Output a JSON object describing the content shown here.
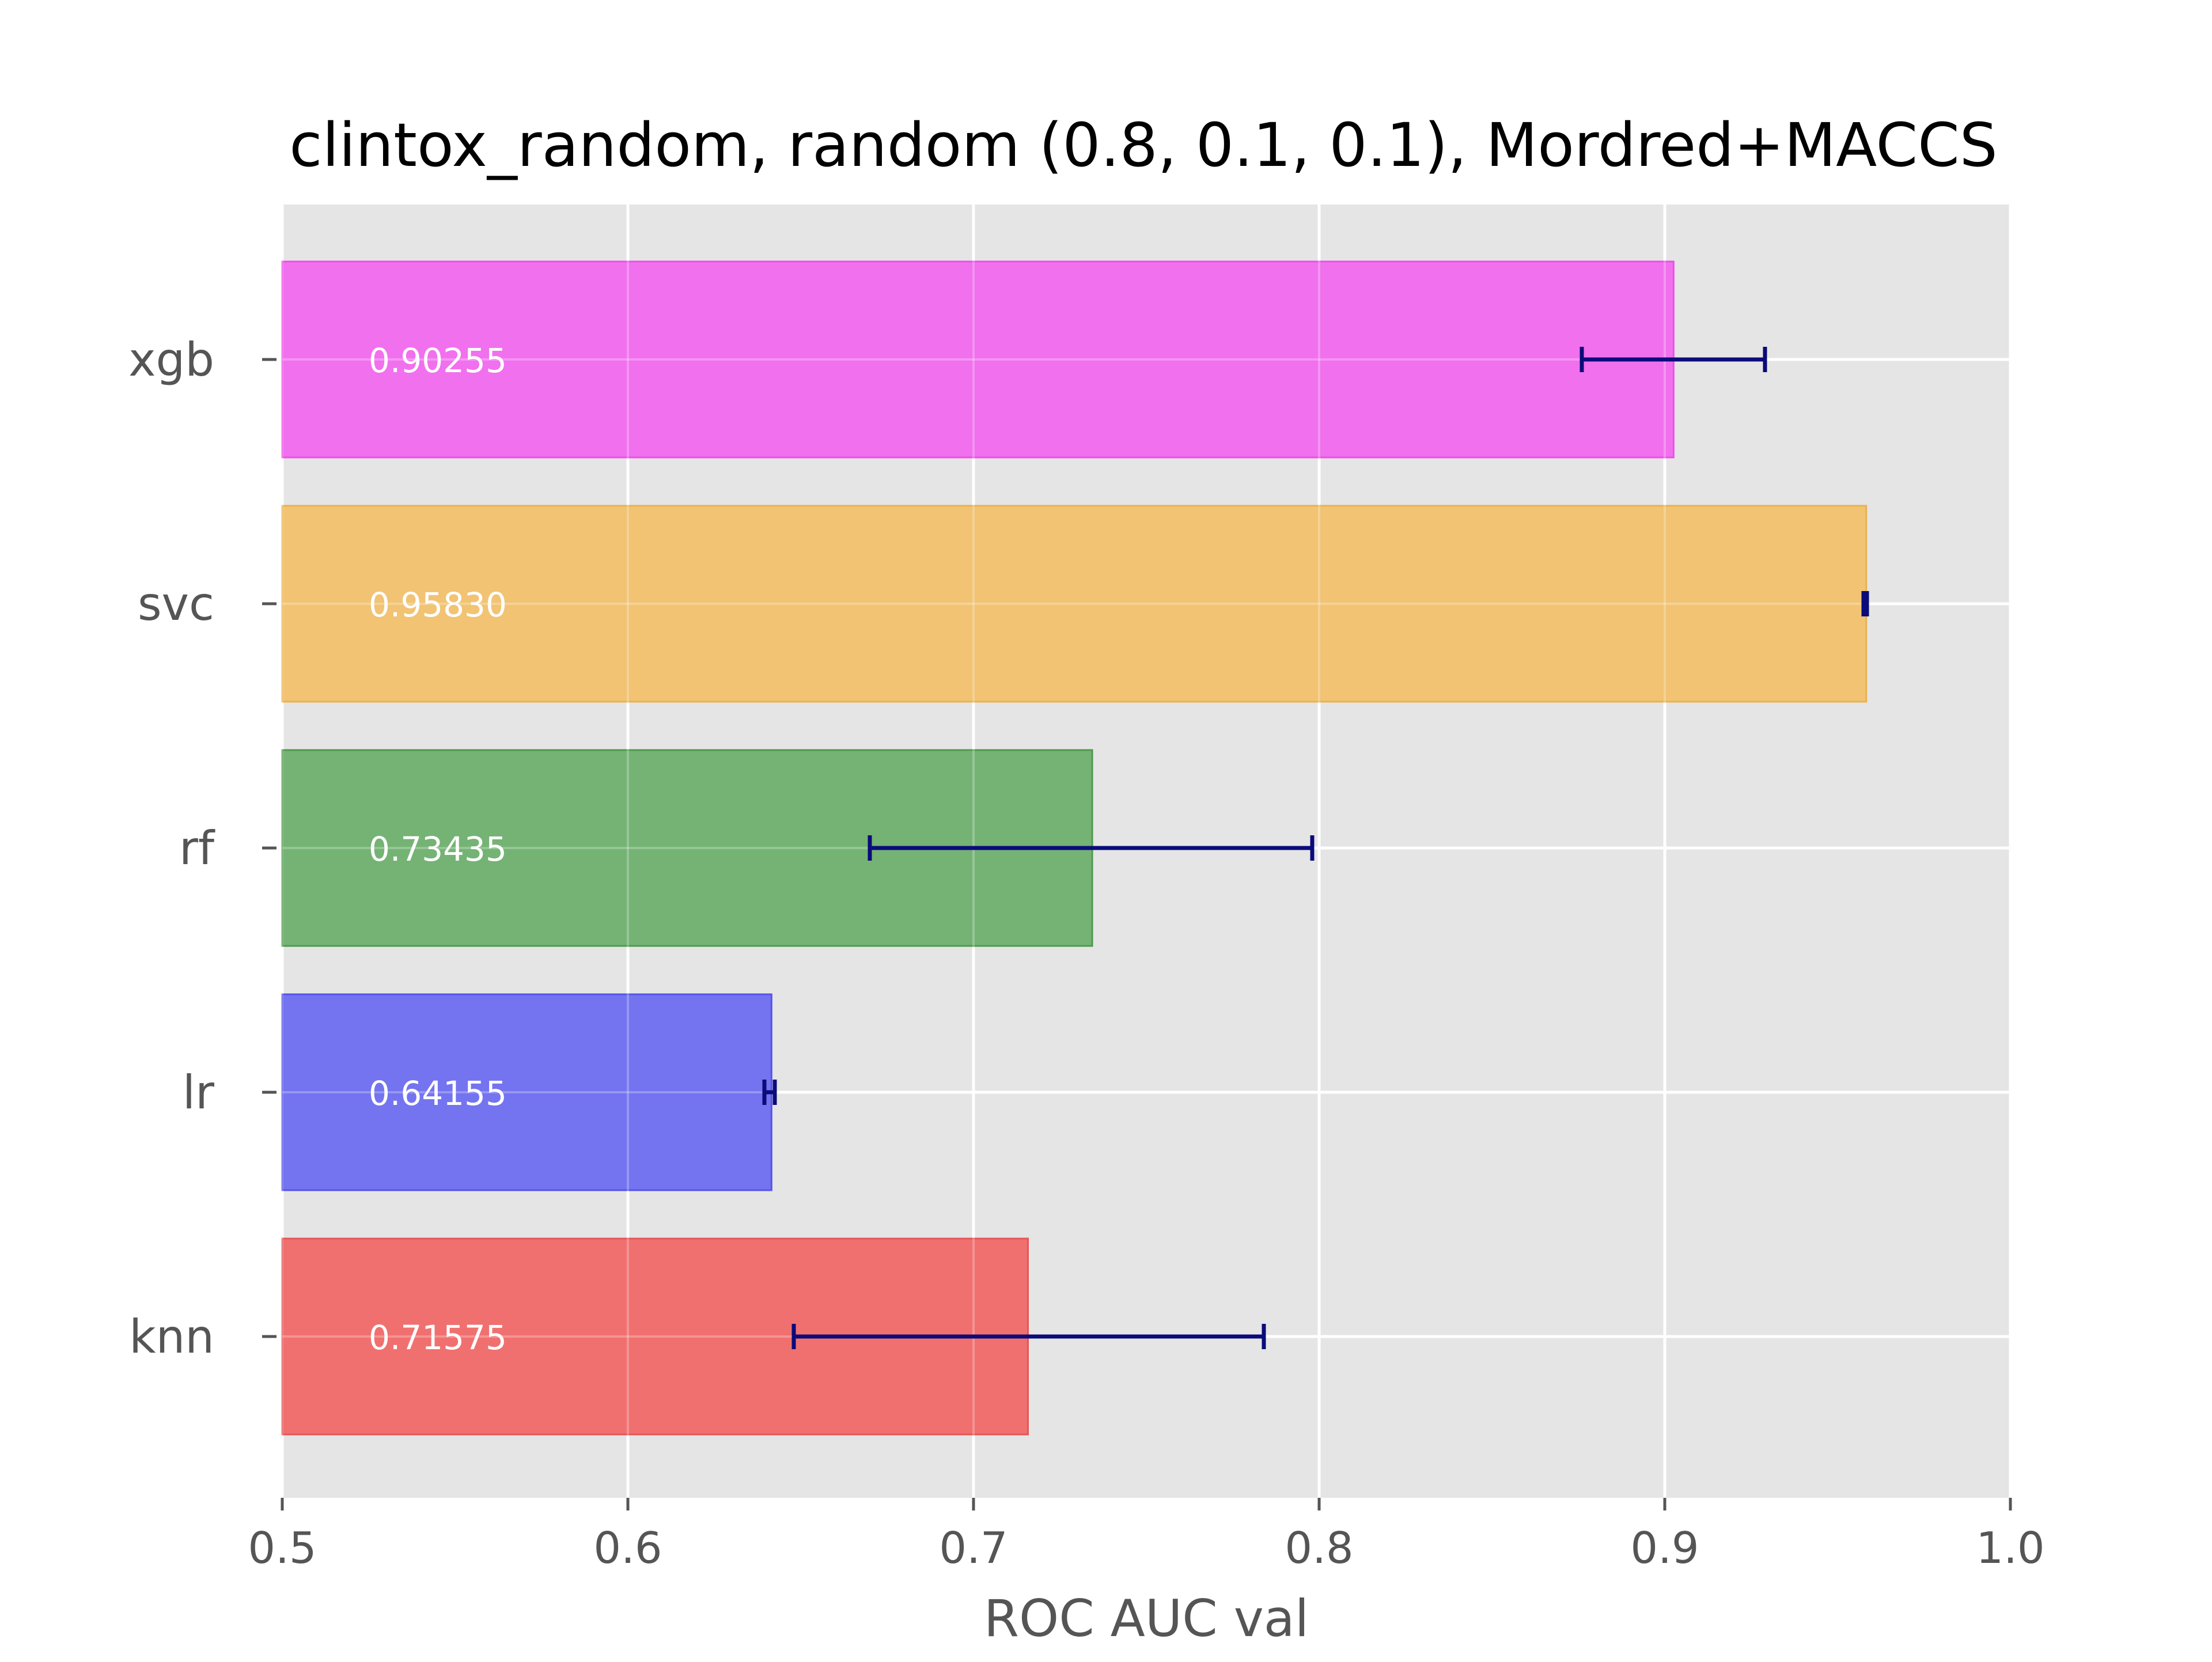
{
  "chart_data": {
    "type": "bar",
    "orientation": "horizontal",
    "title": "clintox_random, random (0.8, 0.1, 0.1), Mordred+MACCS",
    "xlabel": "ROC AUC val",
    "ylabel": "",
    "xlim": [
      0.5,
      1.0
    ],
    "xticks": [
      0.5,
      0.6,
      0.7,
      0.8,
      0.9,
      1.0
    ],
    "xtick_labels": [
      "0.5",
      "0.6",
      "0.7",
      "0.8",
      "0.9",
      "1.0"
    ],
    "grid": true,
    "legend": "none",
    "categories": [
      "knn",
      "lr",
      "rf",
      "svc",
      "xgb"
    ],
    "values": [
      0.71575,
      0.64155,
      0.73435,
      0.9583,
      0.90255
    ],
    "value_labels": [
      "0.71575",
      "0.64155",
      "0.73435",
      "0.95830",
      "0.90255"
    ],
    "error_ranges": [
      [
        0.648,
        0.784
      ],
      [
        0.6395,
        0.6425
      ],
      [
        0.67,
        0.798
      ],
      [
        0.9575,
        0.9585
      ],
      [
        0.876,
        0.929
      ]
    ],
    "bar_colors": [
      "#f07070",
      "#7474f0",
      "#74b374",
      "#f1c373",
      "#f170ee"
    ],
    "bar_edge_colors": [
      "#e85555",
      "#5555e8",
      "#4f9a4f",
      "#eab24f",
      "#ec4fe8"
    ],
    "error_bar_color": "#0b0b7a",
    "plot_background": "#e5e5e5"
  }
}
